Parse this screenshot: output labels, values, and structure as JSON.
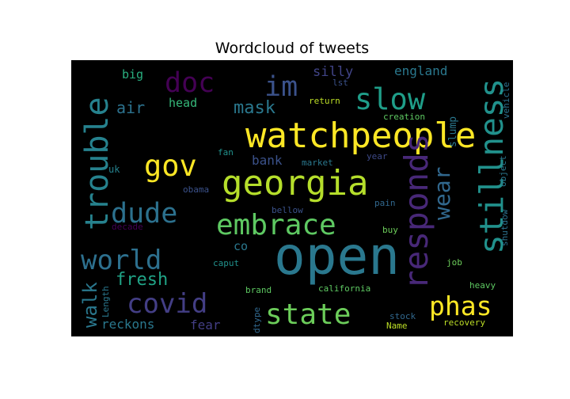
{
  "chart_data": {
    "type": "wordcloud",
    "title": "Wordcloud of tweets",
    "background": "#000000",
    "words": [
      {
        "text": "open",
        "weight": 1.0,
        "color": "#2a788e",
        "vertical": false
      },
      {
        "text": "watchpeople",
        "weight": 0.66,
        "color": "#fde725",
        "vertical": false
      },
      {
        "text": "georgia",
        "weight": 0.66,
        "color": "#b5de2b",
        "vertical": false
      },
      {
        "text": "stillness",
        "weight": 0.62,
        "color": "#21918c",
        "vertical": true
      },
      {
        "text": "responds",
        "weight": 0.62,
        "color": "#482878",
        "vertical": true
      },
      {
        "text": "trouble",
        "weight": 0.6,
        "color": "#26828e",
        "vertical": true
      },
      {
        "text": "slow",
        "weight": 0.56,
        "color": "#1f9e89",
        "vertical": false
      },
      {
        "text": "gov",
        "weight": 0.56,
        "color": "#fde725",
        "vertical": false
      },
      {
        "text": "embrace",
        "weight": 0.55,
        "color": "#5ec962",
        "vertical": false
      },
      {
        "text": "state",
        "weight": 0.55,
        "color": "#6ccd5a",
        "vertical": false
      },
      {
        "text": "dude",
        "weight": 0.53,
        "color": "#2c718e",
        "vertical": false
      },
      {
        "text": "doc",
        "weight": 0.53,
        "color": "#440154",
        "vertical": false
      },
      {
        "text": "im",
        "weight": 0.53,
        "color": "#3b528b",
        "vertical": false
      },
      {
        "text": "covid",
        "weight": 0.52,
        "color": "#433e85",
        "vertical": false
      },
      {
        "text": "world",
        "weight": 0.52,
        "color": "#2d708e",
        "vertical": false
      },
      {
        "text": "phas",
        "weight": 0.5,
        "color": "#fde725",
        "vertical": false
      },
      {
        "text": "wear",
        "weight": 0.42,
        "color": "#31688e",
        "vertical": true
      },
      {
        "text": "walk",
        "weight": 0.36,
        "color": "#2a788e",
        "vertical": true
      },
      {
        "text": "fresh",
        "weight": 0.34,
        "color": "#20a386",
        "vertical": false
      },
      {
        "text": "mask",
        "weight": 0.33,
        "color": "#2a788e",
        "vertical": false
      },
      {
        "text": "air",
        "weight": 0.31,
        "color": "#2c728e",
        "vertical": false
      },
      {
        "text": "silly",
        "weight": 0.25,
        "color": "#414487",
        "vertical": false
      },
      {
        "text": "england",
        "weight": 0.24,
        "color": "#2a788e",
        "vertical": false
      },
      {
        "text": "reckons",
        "weight": 0.24,
        "color": "#2a788e",
        "vertical": false
      },
      {
        "text": "fear",
        "weight": 0.24,
        "color": "#433e85",
        "vertical": false
      },
      {
        "text": "bank",
        "weight": 0.24,
        "color": "#3b528b",
        "vertical": false
      },
      {
        "text": "co",
        "weight": 0.22,
        "color": "#2a788e",
        "vertical": false
      },
      {
        "text": "big",
        "weight": 0.22,
        "color": "#29af7f",
        "vertical": false
      },
      {
        "text": "head",
        "weight": 0.22,
        "color": "#35b779",
        "vertical": false
      },
      {
        "text": "slump",
        "weight": 0.19,
        "color": "#2a788e",
        "vertical": true
      },
      {
        "text": "uk",
        "weight": 0.18,
        "color": "#26828e",
        "vertical": false
      },
      {
        "text": "Length",
        "weight": 0.16,
        "color": "#2a788e",
        "vertical": true
      },
      {
        "text": "object",
        "weight": 0.16,
        "color": "#2a788e",
        "vertical": true
      },
      {
        "text": "vehicle",
        "weight": 0.15,
        "color": "#2c718e",
        "vertical": true
      },
      {
        "text": "shutdow",
        "weight": 0.15,
        "color": "#2c718e",
        "vertical": true
      },
      {
        "text": "job",
        "weight": 0.16,
        "color": "#6ccd5a",
        "vertical": false
      },
      {
        "text": "heavy",
        "weight": 0.16,
        "color": "#5ec962",
        "vertical": false
      },
      {
        "text": "recovery",
        "weight": 0.16,
        "color": "#bddf26",
        "vertical": false
      },
      {
        "text": "california",
        "weight": 0.15,
        "color": "#5ec962",
        "vertical": false
      },
      {
        "text": "brand",
        "weight": 0.15,
        "color": "#5ec962",
        "vertical": false
      },
      {
        "text": "caput",
        "weight": 0.15,
        "color": "#21918c",
        "vertical": false
      },
      {
        "text": "return",
        "weight": 0.14,
        "color": "#bddf26",
        "vertical": false
      },
      {
        "text": "creation",
        "weight": 0.14,
        "color": "#5ec962",
        "vertical": false
      },
      {
        "text": "year",
        "weight": 0.14,
        "color": "#3e4a89",
        "vertical": false
      },
      {
        "text": "market",
        "weight": 0.13,
        "color": "#2a788e",
        "vertical": false
      },
      {
        "text": "fan",
        "weight": 0.13,
        "color": "#21918c",
        "vertical": false
      },
      {
        "text": "obama",
        "weight": 0.13,
        "color": "#3b528b",
        "vertical": false
      },
      {
        "text": "bellow",
        "weight": 0.13,
        "color": "#3b528b",
        "vertical": false
      },
      {
        "text": "pain",
        "weight": 0.13,
        "color": "#31688e",
        "vertical": false
      },
      {
        "text": "buy",
        "weight": 0.13,
        "color": "#6ccd5a",
        "vertical": false
      },
      {
        "text": "decade",
        "weight": 0.13,
        "color": "#440154",
        "vertical": false
      },
      {
        "text": "lst",
        "weight": 0.13,
        "color": "#3b528b",
        "vertical": false
      },
      {
        "text": "stock",
        "weight": 0.12,
        "color": "#31688e",
        "vertical": false
      },
      {
        "text": "Name",
        "weight": 0.14,
        "color": "#bddf26",
        "vertical": false
      },
      {
        "text": "dtype",
        "weight": 0.14,
        "color": "#31688e",
        "vertical": true
      }
    ]
  }
}
